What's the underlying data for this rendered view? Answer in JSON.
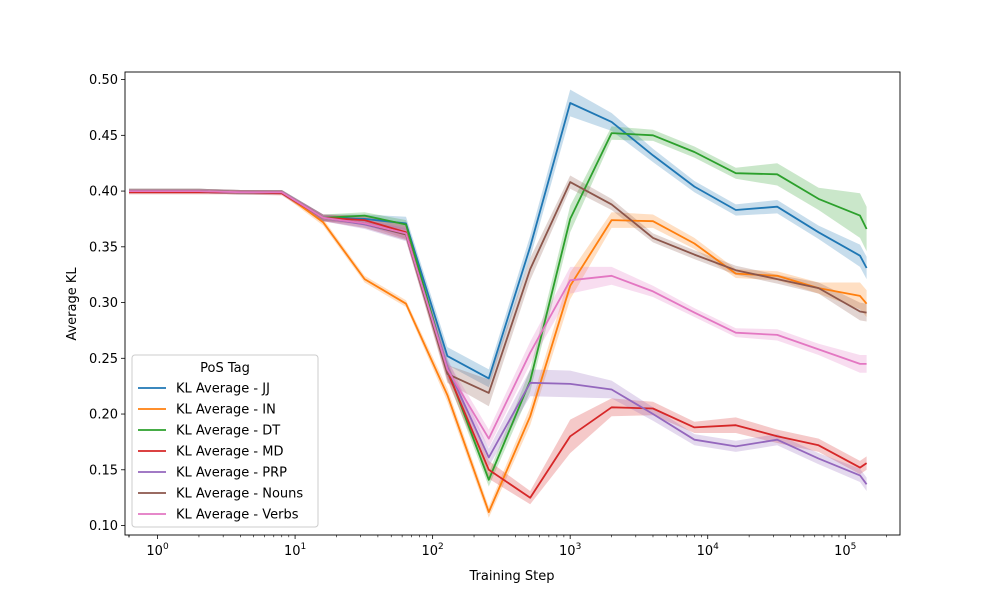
{
  "chart_data": {
    "type": "line",
    "title": "",
    "xlabel": "Training Step",
    "ylabel": "Average KL",
    "xscale": "log",
    "xlim": [
      0.58,
      250000
    ],
    "ylim": [
      0.0915,
      0.5068
    ],
    "yticks": [
      0.1,
      0.15,
      0.2,
      0.25,
      0.3,
      0.35,
      0.4,
      0.45,
      0.5
    ],
    "ytick_labels": [
      "0.10",
      "0.15",
      "0.20",
      "0.25",
      "0.30",
      "0.35",
      "0.40",
      "0.45",
      "0.50"
    ],
    "xticks": [
      {
        "value": 1,
        "base": "10",
        "exp": "0"
      },
      {
        "value": 10,
        "base": "10",
        "exp": "1"
      },
      {
        "value": 100,
        "base": "10",
        "exp": "2"
      },
      {
        "value": 1000,
        "base": "10",
        "exp": "3"
      },
      {
        "value": 10000,
        "base": "10",
        "exp": "4"
      },
      {
        "value": 100000,
        "base": "10",
        "exp": "5"
      }
    ],
    "legend": {
      "title": "PoS Tag",
      "location": "lower left"
    },
    "x": [
      0,
      1,
      2,
      4,
      8,
      16,
      32,
      64,
      128,
      256,
      512,
      1000,
      2000,
      4000,
      8000,
      16000,
      32000,
      64000,
      128000,
      143000
    ],
    "series": [
      {
        "name": "KL Average - JJ",
        "color": "#1f77b4",
        "values": [
          0.4,
          0.4,
          0.4,
          0.399,
          0.399,
          0.376,
          0.375,
          0.371,
          0.252,
          0.232,
          0.35,
          0.479,
          0.462,
          0.432,
          0.404,
          0.383,
          0.386,
          0.363,
          0.342,
          0.331
        ],
        "band": [
          0.002,
          0.002,
          0.002,
          0.002,
          0.002,
          0.003,
          0.004,
          0.006,
          0.008,
          0.008,
          0.01,
          0.012,
          0.008,
          0.006,
          0.005,
          0.005,
          0.006,
          0.006,
          0.01,
          0.01
        ]
      },
      {
        "name": "KL Average - IN",
        "color": "#ff7f0e",
        "values": [
          0.4,
          0.4,
          0.4,
          0.399,
          0.399,
          0.372,
          0.321,
          0.299,
          0.217,
          0.112,
          0.198,
          0.315,
          0.374,
          0.373,
          0.353,
          0.326,
          0.324,
          0.313,
          0.306,
          0.299
        ],
        "band": [
          0.002,
          0.002,
          0.002,
          0.002,
          0.002,
          0.003,
          0.003,
          0.003,
          0.006,
          0.005,
          0.008,
          0.012,
          0.007,
          0.006,
          0.005,
          0.004,
          0.004,
          0.005,
          0.012,
          0.012
        ]
      },
      {
        "name": "KL Average - DT",
        "color": "#2ca02c",
        "values": [
          0.4,
          0.4,
          0.4,
          0.399,
          0.399,
          0.376,
          0.378,
          0.37,
          0.24,
          0.141,
          0.23,
          0.375,
          0.452,
          0.45,
          0.435,
          0.416,
          0.415,
          0.393,
          0.378,
          0.366
        ],
        "band": [
          0.002,
          0.002,
          0.002,
          0.002,
          0.002,
          0.003,
          0.003,
          0.004,
          0.008,
          0.006,
          0.01,
          0.012,
          0.006,
          0.005,
          0.005,
          0.005,
          0.01,
          0.01,
          0.02,
          0.02
        ]
      },
      {
        "name": "KL Average - MD",
        "color": "#d62728",
        "values": [
          0.399,
          0.399,
          0.399,
          0.399,
          0.398,
          0.376,
          0.374,
          0.363,
          0.238,
          0.15,
          0.125,
          0.18,
          0.206,
          0.205,
          0.188,
          0.19,
          0.18,
          0.172,
          0.152,
          0.156
        ],
        "band": [
          0.002,
          0.002,
          0.002,
          0.002,
          0.002,
          0.003,
          0.004,
          0.006,
          0.008,
          0.008,
          0.006,
          0.015,
          0.008,
          0.006,
          0.005,
          0.007,
          0.006,
          0.006,
          0.006,
          0.006
        ]
      },
      {
        "name": "KL Average - PRP",
        "color": "#9467bd",
        "values": [
          0.4,
          0.4,
          0.4,
          0.399,
          0.399,
          0.376,
          0.37,
          0.361,
          0.242,
          0.161,
          0.228,
          0.227,
          0.222,
          0.2,
          0.177,
          0.171,
          0.177,
          0.16,
          0.145,
          0.137
        ],
        "band": [
          0.002,
          0.002,
          0.002,
          0.002,
          0.002,
          0.003,
          0.004,
          0.006,
          0.008,
          0.008,
          0.012,
          0.012,
          0.008,
          0.006,
          0.005,
          0.005,
          0.005,
          0.005,
          0.006,
          0.006
        ]
      },
      {
        "name": "KL Average - Nouns",
        "color": "#8c564b",
        "values": [
          0.4,
          0.4,
          0.4,
          0.399,
          0.399,
          0.376,
          0.371,
          0.361,
          0.236,
          0.219,
          0.33,
          0.408,
          0.388,
          0.358,
          0.343,
          0.329,
          0.321,
          0.313,
          0.292,
          0.291
        ],
        "band": [
          0.002,
          0.002,
          0.002,
          0.002,
          0.002,
          0.003,
          0.004,
          0.005,
          0.008,
          0.012,
          0.01,
          0.006,
          0.005,
          0.004,
          0.004,
          0.004,
          0.004,
          0.005,
          0.008,
          0.008
        ]
      },
      {
        "name": "KL Average - Verbs",
        "color": "#e377c2",
        "values": [
          0.4,
          0.4,
          0.4,
          0.399,
          0.399,
          0.376,
          0.371,
          0.362,
          0.24,
          0.178,
          0.255,
          0.32,
          0.324,
          0.31,
          0.291,
          0.273,
          0.271,
          0.258,
          0.245,
          0.245
        ],
        "band": [
          0.002,
          0.002,
          0.002,
          0.002,
          0.002,
          0.003,
          0.004,
          0.006,
          0.008,
          0.008,
          0.01,
          0.012,
          0.008,
          0.005,
          0.004,
          0.004,
          0.005,
          0.005,
          0.008,
          0.008
        ]
      }
    ]
  }
}
